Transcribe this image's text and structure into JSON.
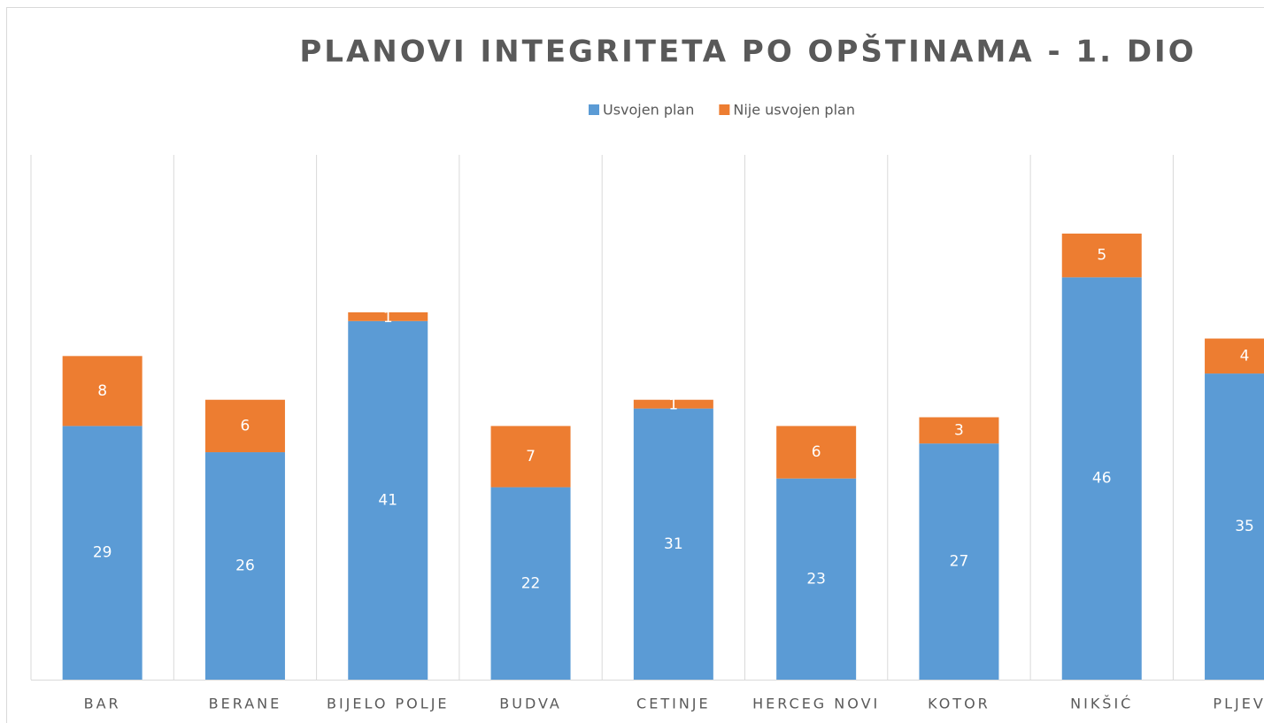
{
  "chart_data": {
    "type": "stacked_bar",
    "title": "PLANOVI INTEGRITETA PO OPŠTINAMA - 1. DIO",
    "categories": [
      "BAR",
      "BERANE",
      "BIJELO POLJE",
      "BUDVA",
      "CETINJE",
      "HERCEG NOVI",
      "KOTOR",
      "NIKŠIĆ",
      "PLJEVL"
    ],
    "series": [
      {
        "name": "Usvojen plan",
        "color": "#5b9bd5",
        "values": [
          29,
          26,
          41,
          22,
          31,
          23,
          27,
          46,
          35
        ]
      },
      {
        "name": "Nije usvojen plan",
        "color": "#ed7d31",
        "values": [
          8,
          6,
          1,
          7,
          1,
          6,
          3,
          5,
          4
        ]
      }
    ],
    "ylim": [
      0,
      60
    ],
    "grid": true,
    "legend": "top"
  }
}
